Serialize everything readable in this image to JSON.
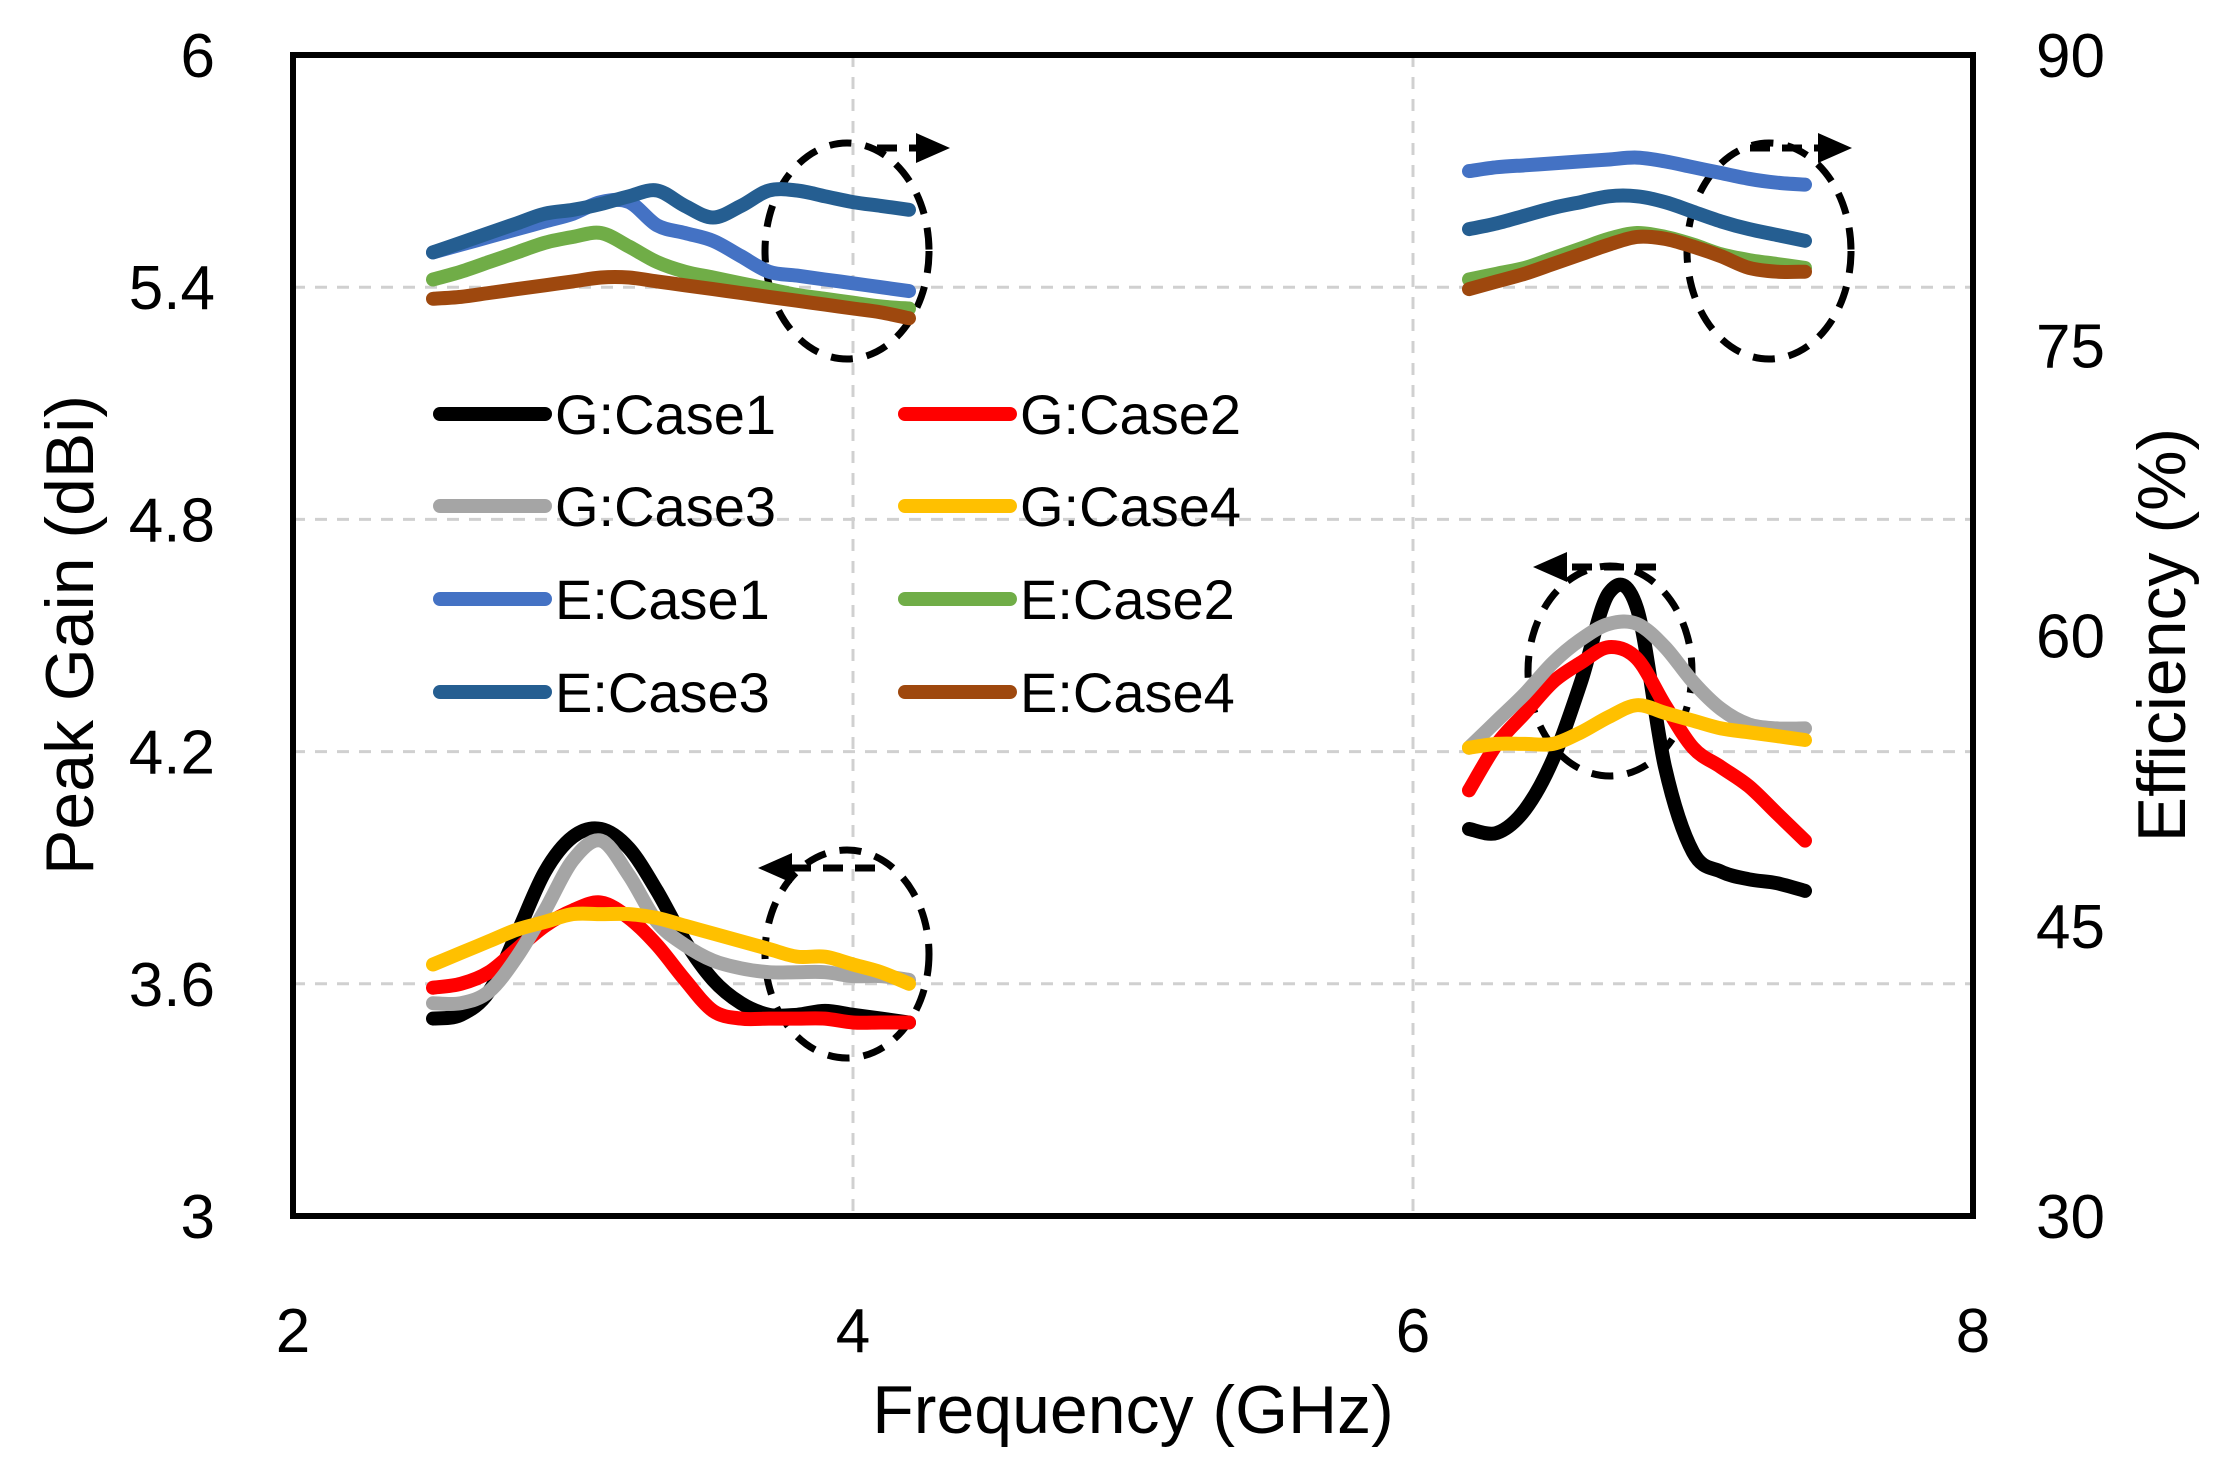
{
  "chart_data": {
    "type": "line",
    "xlabel": "Frequency (GHz)",
    "ylabel_left": "Peak Gain (dBi)",
    "ylabel_right": "Efficiency (%)",
    "xlim": [
      2,
      8
    ],
    "ylim_left": [
      3,
      6
    ],
    "ylim_right": [
      30,
      90
    ],
    "xticks": [
      "2",
      "4",
      "6",
      "8"
    ],
    "yticks_left": [
      "3",
      "3.6",
      "4.2",
      "4.8",
      "5.4",
      "6"
    ],
    "yticks_right": [
      "30",
      "45",
      "60",
      "75",
      "90"
    ],
    "grid": true,
    "legend_position": "center-left",
    "series": [
      {
        "name": "G:Case1",
        "axis": "left",
        "color": "#000000",
        "segments": [
          {
            "x": [
              2.5,
              2.6,
              2.7,
              2.8,
              2.9,
              3.0,
              3.1,
              3.2,
              3.3,
              3.4,
              3.5,
              3.6,
              3.7,
              3.8,
              3.9,
              4.0,
              4.1,
              4.2
            ],
            "y": [
              3.51,
              3.52,
              3.58,
              3.73,
              3.89,
              3.98,
              4.0,
              3.95,
              3.84,
              3.71,
              3.61,
              3.55,
              3.52,
              3.52,
              3.53,
              3.52,
              3.51,
              3.5
            ]
          },
          {
            "x": [
              6.2,
              6.3,
              6.4,
              6.5,
              6.6,
              6.7,
              6.8,
              6.9,
              7.0,
              7.1,
              7.2,
              7.3,
              7.4
            ],
            "y": [
              4.0,
              3.99,
              4.05,
              4.18,
              4.38,
              4.61,
              4.57,
              4.16,
              3.94,
              3.89,
              3.87,
              3.86,
              3.84
            ]
          }
        ]
      },
      {
        "name": "G:Case2",
        "axis": "left",
        "color": "#ff0000",
        "segments": [
          {
            "x": [
              2.5,
              2.6,
              2.7,
              2.8,
              2.9,
              3.0,
              3.1,
              3.2,
              3.3,
              3.4,
              3.5,
              3.6,
              3.7,
              3.8,
              3.9,
              4.0,
              4.1,
              4.2
            ],
            "y": [
              3.59,
              3.6,
              3.63,
              3.69,
              3.75,
              3.79,
              3.81,
              3.77,
              3.7,
              3.61,
              3.53,
              3.51,
              3.51,
              3.51,
              3.51,
              3.5,
              3.5,
              3.5
            ]
          },
          {
            "x": [
              6.2,
              6.3,
              6.4,
              6.5,
              6.6,
              6.7,
              6.8,
              6.9,
              7.0,
              7.1,
              7.2,
              7.3,
              7.4
            ],
            "y": [
              4.1,
              4.22,
              4.3,
              4.38,
              4.43,
              4.47,
              4.44,
              4.32,
              4.21,
              4.16,
              4.11,
              4.04,
              3.97
            ]
          }
        ]
      },
      {
        "name": "G:Case3",
        "axis": "left",
        "color": "#a5a5a5",
        "segments": [
          {
            "x": [
              2.5,
              2.6,
              2.7,
              2.8,
              2.9,
              3.0,
              3.1,
              3.2,
              3.3,
              3.4,
              3.5,
              3.6,
              3.7,
              3.8,
              3.9,
              4.0,
              4.1,
              4.2
            ],
            "y": [
              3.55,
              3.55,
              3.58,
              3.67,
              3.79,
              3.92,
              3.97,
              3.88,
              3.76,
              3.7,
              3.66,
              3.64,
              3.63,
              3.63,
              3.63,
              3.62,
              3.62,
              3.61
            ]
          },
          {
            "x": [
              6.2,
              6.3,
              6.4,
              6.5,
              6.6,
              6.7,
              6.8,
              6.9,
              7.0,
              7.1,
              7.2,
              7.3,
              7.4
            ],
            "y": [
              4.21,
              4.28,
              4.35,
              4.43,
              4.49,
              4.53,
              4.53,
              4.47,
              4.38,
              4.31,
              4.27,
              4.26,
              4.26
            ]
          }
        ]
      },
      {
        "name": "G:Case4",
        "axis": "left",
        "color": "#ffc000",
        "segments": [
          {
            "x": [
              2.5,
              2.6,
              2.7,
              2.8,
              2.9,
              3.0,
              3.1,
              3.2,
              3.3,
              3.4,
              3.5,
              3.6,
              3.7,
              3.8,
              3.9,
              4.0,
              4.1,
              4.2
            ],
            "y": [
              3.65,
              3.68,
              3.71,
              3.74,
              3.76,
              3.78,
              3.78,
              3.78,
              3.77,
              3.75,
              3.73,
              3.71,
              3.69,
              3.67,
              3.67,
              3.65,
              3.63,
              3.6
            ]
          },
          {
            "x": [
              6.2,
              6.3,
              6.4,
              6.5,
              6.6,
              6.7,
              6.8,
              6.9,
              7.0,
              7.1,
              7.2,
              7.3,
              7.4
            ],
            "y": [
              4.21,
              4.22,
              4.22,
              4.22,
              4.25,
              4.29,
              4.32,
              4.3,
              4.28,
              4.26,
              4.25,
              4.24,
              4.23
            ]
          }
        ]
      },
      {
        "name": "E:Case1",
        "axis": "right",
        "color": "#4472c4",
        "segments": [
          {
            "x": [
              2.5,
              2.6,
              2.7,
              2.8,
              2.9,
              3.0,
              3.1,
              3.2,
              3.3,
              3.4,
              3.5,
              3.6,
              3.7,
              3.8,
              3.9,
              4.0,
              4.1,
              4.2
            ],
            "y": [
              79.8,
              80.2,
              80.6,
              81.0,
              81.4,
              81.8,
              82.4,
              82.4,
              81.2,
              80.8,
              80.4,
              79.6,
              78.8,
              78.6,
              78.4,
              78.2,
              78.0,
              77.8
            ]
          },
          {
            "x": [
              6.2,
              6.3,
              6.4,
              6.5,
              6.6,
              6.7,
              6.8,
              6.9,
              7.0,
              7.1,
              7.2,
              7.3,
              7.4
            ],
            "y": [
              84.0,
              84.2,
              84.3,
              84.4,
              84.5,
              84.6,
              84.7,
              84.5,
              84.2,
              83.9,
              83.6,
              83.4,
              83.3
            ]
          }
        ]
      },
      {
        "name": "E:Case2",
        "axis": "right",
        "color": "#70ad47",
        "segments": [
          {
            "x": [
              2.5,
              2.6,
              2.7,
              2.8,
              2.9,
              3.0,
              3.1,
              3.2,
              3.3,
              3.4,
              3.5,
              3.6,
              3.7,
              3.8,
              3.9,
              4.0,
              4.1,
              4.2
            ],
            "y": [
              78.4,
              78.8,
              79.3,
              79.8,
              80.3,
              80.6,
              80.8,
              80.1,
              79.3,
              78.8,
              78.5,
              78.2,
              77.9,
              77.6,
              77.4,
              77.2,
              77.0,
              76.9
            ]
          },
          {
            "x": [
              6.2,
              6.3,
              6.4,
              6.5,
              6.6,
              6.7,
              6.8,
              6.9,
              7.0,
              7.1,
              7.2,
              7.3,
              7.4
            ],
            "y": [
              78.4,
              78.7,
              79.0,
              79.5,
              80.0,
              80.5,
              80.8,
              80.6,
              80.2,
              79.7,
              79.4,
              79.2,
              79.0
            ]
          }
        ]
      },
      {
        "name": "E:Case3",
        "axis": "right",
        "color": "#255e91",
        "segments": [
          {
            "x": [
              2.5,
              2.6,
              2.7,
              2.8,
              2.9,
              3.0,
              3.1,
              3.2,
              3.3,
              3.4,
              3.5,
              3.6,
              3.7,
              3.8,
              3.9,
              4.0,
              4.1,
              4.2
            ],
            "y": [
              79.8,
              80.3,
              80.8,
              81.3,
              81.8,
              82.0,
              82.3,
              82.7,
              83.0,
              82.2,
              81.6,
              82.2,
              83.0,
              83.0,
              82.7,
              82.4,
              82.2,
              82.0
            ]
          },
          {
            "x": [
              6.2,
              6.3,
              6.4,
              6.5,
              6.6,
              6.7,
              6.8,
              6.9,
              7.0,
              7.1,
              7.2,
              7.3,
              7.4
            ],
            "y": [
              81.0,
              81.3,
              81.7,
              82.1,
              82.4,
              82.7,
              82.7,
              82.4,
              81.9,
              81.4,
              81.0,
              80.7,
              80.4
            ]
          }
        ]
      },
      {
        "name": "E:Case4",
        "axis": "right",
        "color": "#9e480e",
        "segments": [
          {
            "x": [
              2.5,
              2.6,
              2.7,
              2.8,
              2.9,
              3.0,
              3.1,
              3.2,
              3.3,
              3.4,
              3.5,
              3.6,
              3.7,
              3.8,
              3.9,
              4.0,
              4.1,
              4.2
            ],
            "y": [
              77.4,
              77.5,
              77.7,
              77.9,
              78.1,
              78.3,
              78.5,
              78.5,
              78.3,
              78.1,
              77.9,
              77.7,
              77.5,
              77.3,
              77.1,
              76.9,
              76.7,
              76.4
            ]
          },
          {
            "x": [
              6.2,
              6.3,
              6.4,
              6.5,
              6.6,
              6.7,
              6.8,
              6.9,
              7.0,
              7.1,
              7.2,
              7.3,
              7.4
            ],
            "y": [
              77.9,
              78.3,
              78.7,
              79.2,
              79.7,
              80.2,
              80.6,
              80.5,
              80.1,
              79.6,
              79.0,
              78.8,
              78.8
            ]
          }
        ]
      }
    ],
    "annotations": [
      {
        "name": "efficiency-band1",
        "points_to": "right"
      },
      {
        "name": "efficiency-band2",
        "points_to": "right"
      },
      {
        "name": "gain-band1",
        "points_to": "left"
      },
      {
        "name": "gain-band2",
        "points_to": "left"
      }
    ]
  }
}
